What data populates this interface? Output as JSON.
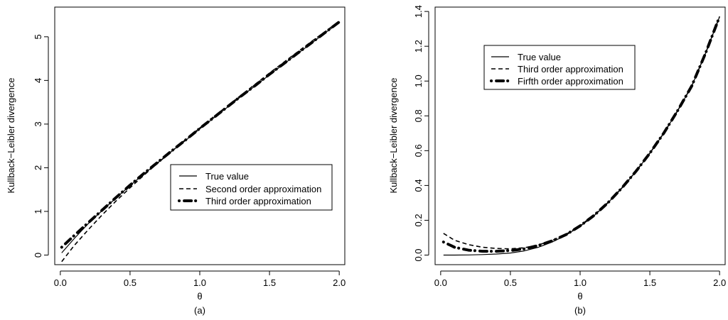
{
  "chart_data": [
    {
      "type": "line",
      "panel_label": "(a)",
      "xlabel": "θ",
      "ylabel": "Kullback−Leibler divergence",
      "xlim": [
        -0.04,
        2.04
      ],
      "ylim": [
        -0.22,
        5.68
      ],
      "x_ticks": [
        0.0,
        0.5,
        1.0,
        1.5,
        2.0
      ],
      "x_tick_labels": [
        "0.0",
        "0.5",
        "1.0",
        "1.5",
        "2.0"
      ],
      "y_ticks": [
        0,
        1,
        2,
        3,
        4,
        5
      ],
      "y_tick_labels": [
        "0",
        "1",
        "2",
        "3",
        "4",
        "5"
      ],
      "grid": false,
      "legend_position": "center-right",
      "series": [
        {
          "name": "True value",
          "style": "solid",
          "x": [
            0.01,
            0.1,
            0.2,
            0.3,
            0.4,
            0.5,
            0.6,
            0.7,
            0.8,
            0.9,
            1.0,
            1.1,
            1.2,
            1.3,
            1.4,
            1.5,
            1.6,
            1.7,
            1.8,
            1.9,
            2.0
          ],
          "y": [
            0.05,
            0.38,
            0.72,
            1.02,
            1.31,
            1.59,
            1.86,
            2.12,
            2.38,
            2.63,
            2.89,
            3.14,
            3.39,
            3.64,
            3.88,
            4.13,
            4.37,
            4.61,
            4.85,
            5.09,
            5.32
          ]
        },
        {
          "name": "Second order approximation",
          "style": "dashed",
          "x": [
            0.01,
            0.1,
            0.2,
            0.3,
            0.4,
            0.5,
            0.6,
            0.7,
            0.8,
            0.9,
            1.0,
            1.1,
            1.2,
            1.3,
            1.4,
            1.5,
            1.6,
            1.7,
            1.8,
            1.9,
            2.0
          ],
          "y": [
            -0.15,
            0.22,
            0.58,
            0.92,
            1.24,
            1.54,
            1.83,
            2.11,
            2.38,
            2.65,
            2.91,
            3.17,
            3.42,
            3.67,
            3.92,
            4.17,
            4.41,
            4.65,
            4.89,
            5.12,
            5.36
          ]
        },
        {
          "name": "Third order approximation",
          "style": "dot-dash-thick",
          "x": [
            0.01,
            0.1,
            0.2,
            0.3,
            0.4,
            0.5,
            0.6,
            0.7,
            0.8,
            0.9,
            1.0,
            1.1,
            1.2,
            1.3,
            1.4,
            1.5,
            1.6,
            1.7,
            1.8,
            1.9,
            2.0
          ],
          "y": [
            0.18,
            0.45,
            0.74,
            1.03,
            1.32,
            1.6,
            1.87,
            2.13,
            2.39,
            2.64,
            2.9,
            3.15,
            3.4,
            3.65,
            3.89,
            4.14,
            4.38,
            4.62,
            4.86,
            5.1,
            5.34
          ]
        }
      ]
    },
    {
      "type": "line",
      "panel_label": "(b)",
      "xlabel": "θ",
      "ylabel": "Kullback−Leibler divergence",
      "xlim": [
        -0.04,
        2.04
      ],
      "ylim": [
        -0.055,
        1.425
      ],
      "x_ticks": [
        0.0,
        0.5,
        1.0,
        1.5,
        2.0
      ],
      "x_tick_labels": [
        "0.0",
        "0.5",
        "1.0",
        "1.5",
        "2.0"
      ],
      "y_ticks": [
        0.0,
        0.2,
        0.4,
        0.6,
        0.8,
        1.0,
        1.2,
        1.4
      ],
      "y_tick_labels": [
        "0.0",
        "0.2",
        "0.4",
        "0.6",
        "0.8",
        "1.0",
        "1.2",
        "1.4"
      ],
      "grid": false,
      "legend_position": "top-left",
      "series": [
        {
          "name": "True value",
          "style": "solid",
          "x": [
            0.02,
            0.1,
            0.2,
            0.3,
            0.4,
            0.5,
            0.6,
            0.7,
            0.8,
            0.9,
            1.0,
            1.1,
            1.2,
            1.3,
            1.4,
            1.5,
            1.6,
            1.7,
            1.8,
            1.9,
            2.0
          ],
          "y": [
            0.0,
            0.0,
            0.001,
            0.003,
            0.006,
            0.012,
            0.024,
            0.045,
            0.075,
            0.115,
            0.165,
            0.226,
            0.3,
            0.385,
            0.48,
            0.585,
            0.7,
            0.83,
            0.97,
            1.16,
            1.37
          ]
        },
        {
          "name": "Third order approximation",
          "style": "dashed",
          "x": [
            0.02,
            0.1,
            0.2,
            0.3,
            0.4,
            0.5,
            0.6,
            0.7,
            0.8,
            0.9,
            1.0,
            1.1,
            1.2,
            1.3,
            1.4,
            1.5,
            1.6,
            1.7,
            1.8,
            1.9,
            2.0
          ],
          "y": [
            0.125,
            0.085,
            0.06,
            0.045,
            0.038,
            0.036,
            0.042,
            0.058,
            0.085,
            0.12,
            0.17,
            0.23,
            0.302,
            0.386,
            0.481,
            0.586,
            0.701,
            0.831,
            0.971,
            1.161,
            1.371
          ]
        },
        {
          "name": "Firfth order approximation",
          "style": "dot-dash-thick",
          "x": [
            0.02,
            0.1,
            0.2,
            0.3,
            0.4,
            0.5,
            0.6,
            0.7,
            0.8,
            0.9,
            1.0,
            1.1,
            1.2,
            1.3,
            1.4,
            1.5,
            1.6,
            1.7,
            1.8,
            1.9,
            2.0
          ],
          "y": [
            0.075,
            0.045,
            0.028,
            0.022,
            0.022,
            0.026,
            0.036,
            0.055,
            0.082,
            0.118,
            0.168,
            0.228,
            0.301,
            0.386,
            0.481,
            0.586,
            0.701,
            0.831,
            0.971,
            1.161,
            1.371
          ]
        }
      ]
    }
  ]
}
